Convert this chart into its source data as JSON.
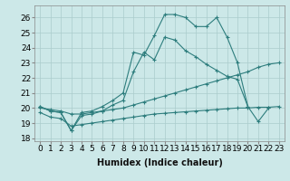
{
  "xlabel": "Humidex (Indice chaleur)",
  "color": "#2d7d7d",
  "bg_color": "#cce8e8",
  "grid_color": "#aacccc",
  "ylim": [
    17.8,
    26.8
  ],
  "yticks": [
    18,
    19,
    20,
    21,
    22,
    23,
    24,
    25,
    26
  ],
  "xticks": [
    0,
    1,
    2,
    3,
    4,
    5,
    6,
    7,
    8,
    9,
    10,
    11,
    12,
    13,
    14,
    15,
    16,
    17,
    18,
    19,
    20,
    21,
    22,
    23
  ],
  "xlabel_fontsize": 7,
  "tick_fontsize": 6.5,
  "line_A_x": [
    0,
    1,
    2,
    3,
    4,
    5,
    6,
    7,
    8,
    9,
    10,
    11,
    12,
    13,
    14,
    15,
    16,
    17,
    18,
    19,
    20,
    21,
    22
  ],
  "line_A_y": [
    20.1,
    19.8,
    19.7,
    18.5,
    19.7,
    19.8,
    20.1,
    20.5,
    21.0,
    23.7,
    23.5,
    24.8,
    26.2,
    26.2,
    26.0,
    25.4,
    25.4,
    26.0,
    24.7,
    23.0,
    20.1,
    19.1,
    20.0
  ],
  "line_B_x": [
    0,
    1,
    2,
    3,
    4,
    5,
    6,
    7,
    8,
    9,
    10,
    11,
    12,
    13,
    14,
    15,
    16,
    17,
    18,
    19,
    20
  ],
  "line_B_y": [
    20.1,
    19.8,
    19.7,
    18.5,
    19.5,
    19.6,
    19.8,
    20.2,
    20.5,
    22.4,
    23.7,
    23.2,
    24.7,
    24.5,
    23.8,
    23.4,
    22.9,
    22.5,
    22.1,
    21.9,
    20.1
  ],
  "line_C_x": [
    0,
    1,
    2,
    3,
    4,
    5,
    6,
    7,
    8,
    9,
    10,
    11,
    12,
    13,
    14,
    15,
    16,
    17,
    18,
    19,
    20,
    21,
    22,
    23
  ],
  "line_C_y": [
    20.0,
    19.9,
    19.8,
    19.6,
    19.6,
    19.7,
    19.8,
    19.9,
    20.0,
    20.2,
    20.4,
    20.6,
    20.8,
    21.0,
    21.2,
    21.4,
    21.6,
    21.8,
    22.0,
    22.2,
    22.4,
    22.7,
    22.9,
    23.0
  ],
  "line_D_x": [
    0,
    1,
    2,
    3,
    4,
    5,
    6,
    7,
    8,
    9,
    10,
    11,
    12,
    13,
    14,
    15,
    16,
    17,
    18,
    19,
    20,
    21,
    22,
    23
  ],
  "line_D_y": [
    19.7,
    19.4,
    19.3,
    18.8,
    18.9,
    19.0,
    19.1,
    19.2,
    19.3,
    19.4,
    19.5,
    19.6,
    19.65,
    19.7,
    19.75,
    19.8,
    19.85,
    19.9,
    19.95,
    20.0,
    20.0,
    20.05,
    20.05,
    20.1
  ]
}
